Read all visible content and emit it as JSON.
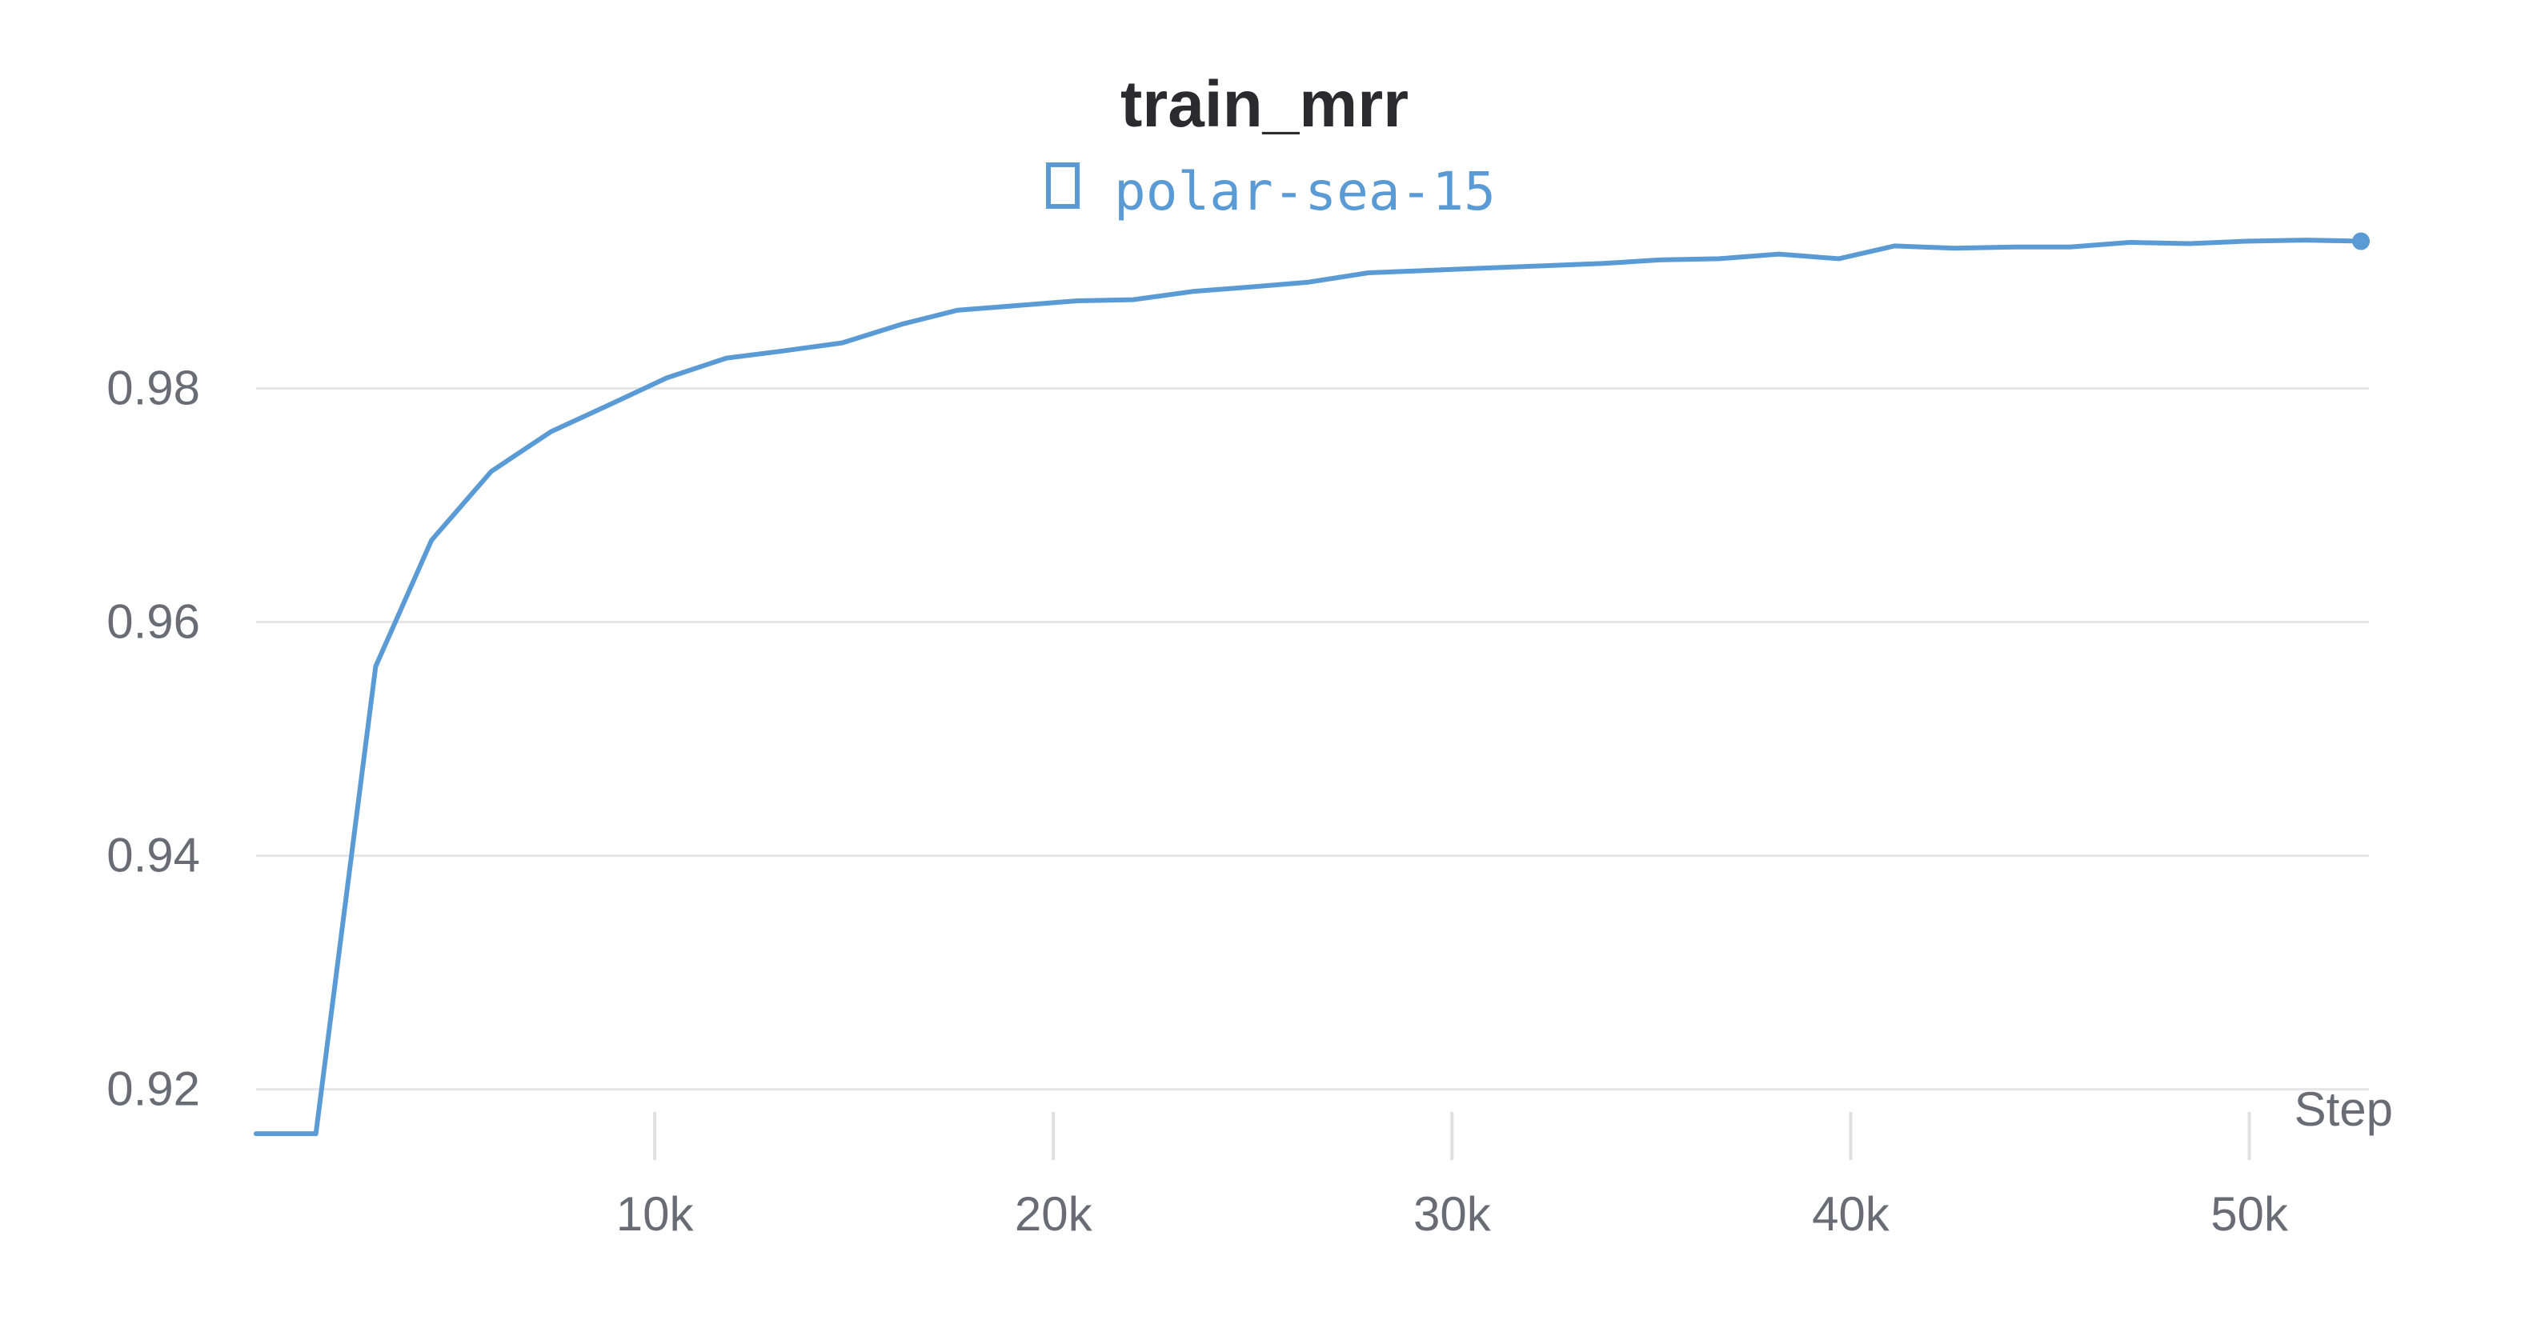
{
  "chart_data": {
    "type": "line",
    "title": "train_mrr",
    "xlabel": "Step",
    "ylabel": "",
    "xlim": [
      0,
      53000
    ],
    "ylim": [
      0.916,
      0.9975
    ],
    "grid": true,
    "legend_position": "top-center",
    "x_ticks": [
      10000,
      20000,
      30000,
      40000,
      50000
    ],
    "x_tick_labels": [
      "10k",
      "20k",
      "30k",
      "40k",
      "50k"
    ],
    "y_ticks": [
      0.92,
      0.94,
      0.96,
      0.98
    ],
    "y_tick_labels": [
      "0.92",
      "0.94",
      "0.96",
      "0.98"
    ],
    "series": [
      {
        "name": "polar-sea-15",
        "color": "#5b9bd5",
        "legend_icon": "square-outline-icon",
        "x": [
          0,
          1500,
          3000,
          4400,
          5900,
          7400,
          8800,
          10300,
          11800,
          13200,
          14700,
          16200,
          17600,
          19100,
          20600,
          22000,
          23500,
          25000,
          26400,
          27900,
          29400,
          30800,
          32300,
          33800,
          35200,
          36700,
          38200,
          39700,
          41100,
          42600,
          44100,
          45500,
          47000,
          48500,
          49900,
          51400,
          52800
        ],
        "y": [
          0.9162,
          0.9162,
          0.9562,
          0.967,
          0.9729,
          0.9763,
          0.9785,
          0.9809,
          0.9826,
          0.9832,
          0.9839,
          0.9855,
          0.9867,
          0.9871,
          0.9875,
          0.9876,
          0.9883,
          0.9887,
          0.9891,
          0.9899,
          0.9901,
          0.9903,
          0.9905,
          0.9907,
          0.991,
          0.9911,
          0.9915,
          0.9911,
          0.9922,
          0.992,
          0.9921,
          0.9921,
          0.9925,
          0.9924,
          0.9926,
          0.9927,
          0.9926
        ]
      }
    ]
  }
}
